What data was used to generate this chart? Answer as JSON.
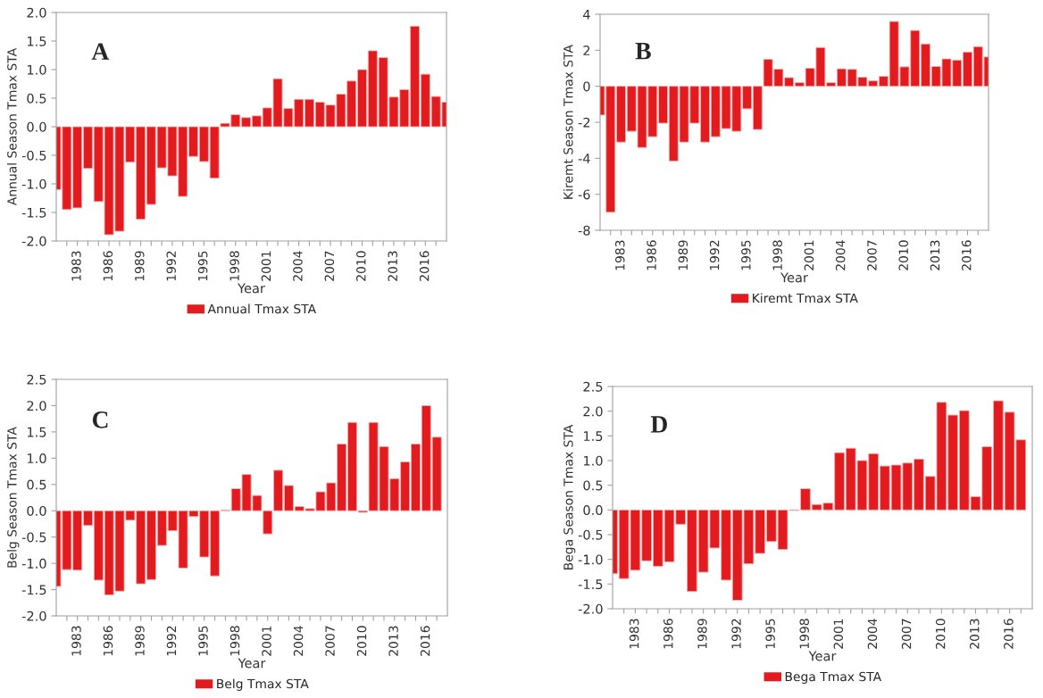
{
  "chart_data": [
    {
      "type": "bar",
      "annotations": [
        "A"
      ],
      "xlabel": "Year",
      "ylabel": "Annual Season Tmax STA",
      "legend": "bottom",
      "grid": false,
      "x": [
        1981,
        1982,
        1983,
        1984,
        1985,
        1986,
        1987,
        1988,
        1989,
        1990,
        1991,
        1992,
        1993,
        1994,
        1995,
        1996,
        1997,
        1998,
        1999,
        2000,
        2001,
        2002,
        2003,
        2004,
        2005,
        2006,
        2007,
        2008,
        2009,
        2010,
        2011,
        2012,
        2013,
        2014,
        2015,
        2016,
        2017,
        2018
      ],
      "xlim": [
        1981,
        2018
      ],
      "xticks": [
        {
          "value": 1982,
          "label": null
        },
        1983,
        {
          "value": 1984,
          "label": null
        },
        {
          "value": 1985,
          "label": null
        },
        1986,
        {
          "value": 1987,
          "label": null
        },
        {
          "value": 1988,
          "label": null
        },
        1989,
        {
          "value": 1990,
          "label": null
        },
        {
          "value": 1991,
          "label": null
        },
        1992,
        {
          "value": 1993,
          "label": null
        },
        {
          "value": 1994,
          "label": null
        },
        1995,
        {
          "value": 1996,
          "label": null
        },
        {
          "value": 1997,
          "label": null
        },
        1998,
        {
          "value": 1999,
          "label": null
        },
        {
          "value": 2000,
          "label": null
        },
        2001,
        {
          "value": 2002,
          "label": null
        },
        {
          "value": 2003,
          "label": null
        },
        2004,
        {
          "value": 2005,
          "label": null
        },
        {
          "value": 2006,
          "label": null
        },
        2007,
        {
          "value": 2008,
          "label": null
        },
        {
          "value": 2009,
          "label": null
        },
        2010,
        {
          "value": 2011,
          "label": null
        },
        {
          "value": 2012,
          "label": null
        },
        2013,
        {
          "value": 2014,
          "label": null
        },
        {
          "value": 2015,
          "label": null
        },
        2016,
        {
          "value": 2017,
          "label": null
        }
      ],
      "ylim": [
        -2.0,
        2.0
      ],
      "yticks": [
        {
          "value": -2.0,
          "label": "-2.0"
        },
        {
          "value": -1.5,
          "label": "-1.5"
        },
        {
          "value": -1.0,
          "label": "-1.0"
        },
        {
          "value": -0.5,
          "label": "-0.5"
        },
        {
          "value": 0.0,
          "label": "0.0"
        },
        {
          "value": 0.5,
          "label": "0.5"
        },
        {
          "value": 1.0,
          "label": "1.0"
        },
        {
          "value": 1.5,
          "label": "1.5"
        },
        {
          "value": 2.0,
          "label": "2.0"
        }
      ],
      "series": [
        {
          "name": "Annual Tmax STA",
          "color": "#e31b1f",
          "values": [
            -1.1,
            -1.45,
            -1.42,
            -0.73,
            -1.31,
            -1.89,
            -1.83,
            -0.62,
            -1.62,
            -1.36,
            -0.72,
            -0.86,
            -1.22,
            -0.52,
            -0.61,
            -0.9,
            0.06,
            0.21,
            0.16,
            0.19,
            0.33,
            0.84,
            0.32,
            0.48,
            0.48,
            0.43,
            0.38,
            0.57,
            0.8,
            1.0,
            1.33,
            1.21,
            0.52,
            0.65,
            1.76,
            0.92,
            0.53,
            0.43
          ]
        }
      ]
    },
    {
      "type": "bar",
      "annotations": [
        "B"
      ],
      "xlabel": "Year",
      "ylabel": "Kiremt Season Tmax STA",
      "legend": "bottom",
      "grid": false,
      "x": [
        1981,
        1982,
        1983,
        1984,
        1985,
        1986,
        1987,
        1988,
        1989,
        1990,
        1991,
        1992,
        1993,
        1994,
        1995,
        1996,
        1997,
        1998,
        1999,
        2000,
        2001,
        2002,
        2003,
        2004,
        2005,
        2006,
        2007,
        2008,
        2009,
        2010,
        2011,
        2012,
        2013,
        2014,
        2015,
        2016,
        2017,
        2018
      ],
      "xlim": [
        1981,
        2018
      ],
      "xticks": [
        {
          "value": 1982,
          "label": null
        },
        1983,
        {
          "value": 1984,
          "label": null
        },
        {
          "value": 1985,
          "label": null
        },
        1986,
        {
          "value": 1987,
          "label": null
        },
        {
          "value": 1988,
          "label": null
        },
        1989,
        {
          "value": 1990,
          "label": null
        },
        {
          "value": 1991,
          "label": null
        },
        1992,
        {
          "value": 1993,
          "label": null
        },
        {
          "value": 1994,
          "label": null
        },
        1995,
        {
          "value": 1996,
          "label": null
        },
        {
          "value": 1997,
          "label": null
        },
        1998,
        {
          "value": 1999,
          "label": null
        },
        {
          "value": 2000,
          "label": null
        },
        2001,
        {
          "value": 2002,
          "label": null
        },
        {
          "value": 2003,
          "label": null
        },
        2004,
        {
          "value": 2005,
          "label": null
        },
        {
          "value": 2006,
          "label": null
        },
        2007,
        {
          "value": 2008,
          "label": null
        },
        {
          "value": 2009,
          "label": null
        },
        2010,
        {
          "value": 2011,
          "label": null
        },
        {
          "value": 2012,
          "label": null
        },
        2013,
        {
          "value": 2014,
          "label": null
        },
        {
          "value": 2015,
          "label": null
        },
        2016,
        {
          "value": 2017,
          "label": null
        }
      ],
      "ylim": [
        -8,
        4
      ],
      "yticks": [
        -8,
        -6,
        -4,
        -2,
        0,
        2,
        4
      ],
      "series": [
        {
          "name": "Kiremt Tmax STA",
          "color": "#e31b1f",
          "values": [
            -1.6,
            -7.0,
            -3.1,
            -2.5,
            -3.4,
            -2.8,
            -2.05,
            -4.15,
            -3.1,
            -2.05,
            -3.1,
            -2.8,
            -2.35,
            -2.5,
            -1.25,
            -2.4,
            1.5,
            0.95,
            0.48,
            0.2,
            1.0,
            2.15,
            0.2,
            0.97,
            0.94,
            0.5,
            0.3,
            0.55,
            3.6,
            1.08,
            3.1,
            2.35,
            1.1,
            1.52,
            1.45,
            1.9,
            2.2,
            1.63
          ]
        }
      ]
    },
    {
      "type": "bar",
      "annotations": [
        "C"
      ],
      "xlabel": "Year",
      "ylabel": "Belg Season Tmax STA",
      "legend": "bottom",
      "grid": false,
      "x": [
        1981,
        1982,
        1983,
        1984,
        1985,
        1986,
        1987,
        1988,
        1989,
        1990,
        1991,
        1992,
        1993,
        1994,
        1995,
        1996,
        1997,
        1998,
        1999,
        2000,
        2001,
        2002,
        2003,
        2004,
        2005,
        2006,
        2007,
        2008,
        2009,
        2010,
        2011,
        2012,
        2013,
        2014,
        2015,
        2016,
        2017
      ],
      "xlim": [
        1981,
        2018
      ],
      "xticks": [
        {
          "value": 1982,
          "label": null
        },
        1983,
        {
          "value": 1984,
          "label": null
        },
        {
          "value": 1985,
          "label": null
        },
        1986,
        {
          "value": 1987,
          "label": null
        },
        {
          "value": 1988,
          "label": null
        },
        1989,
        {
          "value": 1990,
          "label": null
        },
        {
          "value": 1991,
          "label": null
        },
        1992,
        {
          "value": 1993,
          "label": null
        },
        {
          "value": 1994,
          "label": null
        },
        1995,
        {
          "value": 1996,
          "label": null
        },
        {
          "value": 1997,
          "label": null
        },
        1998,
        {
          "value": 1999,
          "label": null
        },
        {
          "value": 2000,
          "label": null
        },
        2001,
        {
          "value": 2002,
          "label": null
        },
        {
          "value": 2003,
          "label": null
        },
        2004,
        {
          "value": 2005,
          "label": null
        },
        {
          "value": 2006,
          "label": null
        },
        2007,
        {
          "value": 2008,
          "label": null
        },
        {
          "value": 2009,
          "label": null
        },
        2010,
        {
          "value": 2011,
          "label": null
        },
        {
          "value": 2012,
          "label": null
        },
        2013,
        {
          "value": 2014,
          "label": null
        },
        {
          "value": 2015,
          "label": null
        },
        2016,
        {
          "value": 2017,
          "label": null
        }
      ],
      "ylim": [
        -2.0,
        2.5
      ],
      "yticks": [
        {
          "value": -2.0,
          "label": "-2.0"
        },
        {
          "value": -1.5,
          "label": "-1.5"
        },
        {
          "value": -1.0,
          "label": "-1.0"
        },
        {
          "value": -0.5,
          "label": "-0.5"
        },
        {
          "value": 0.0,
          "label": "0.0"
        },
        {
          "value": 0.5,
          "label": "0.5"
        },
        {
          "value": 1.0,
          "label": "1.0"
        },
        {
          "value": 1.5,
          "label": "1.5"
        },
        {
          "value": 2.0,
          "label": "2.0"
        },
        {
          "value": 2.5,
          "label": "2.5"
        }
      ],
      "series": [
        {
          "name": "Belg Tmax STA",
          "color": "#e31b1f",
          "values": [
            -1.44,
            -1.12,
            -1.13,
            -0.28,
            -1.32,
            -1.6,
            -1.53,
            -0.18,
            -1.39,
            -1.31,
            -0.66,
            -0.38,
            -1.09,
            -0.11,
            -0.88,
            -1.24,
            0.01,
            0.42,
            0.69,
            0.29,
            -0.44,
            0.77,
            0.48,
            0.08,
            0.04,
            0.36,
            0.53,
            1.27,
            1.68,
            -0.03,
            1.68,
            1.22,
            0.61,
            0.93,
            1.27,
            2.0,
            1.4
          ]
        }
      ]
    },
    {
      "type": "bar",
      "annotations": [
        "D"
      ],
      "xlabel": "Year",
      "ylabel": "Bega Season Tmax STA",
      "legend": "bottom",
      "grid": false,
      "xlim": [
        1981,
        2018
      ],
      "xticks": [
        {
          "value": 1982,
          "label": null
        },
        1983,
        {
          "value": 1984,
          "label": null
        },
        {
          "value": 1985,
          "label": null
        },
        1986,
        {
          "value": 1987,
          "label": null
        },
        {
          "value": 1988,
          "label": null
        },
        1989,
        {
          "value": 1990,
          "label": null
        },
        {
          "value": 1991,
          "label": null
        },
        1992,
        {
          "value": 1993,
          "label": null
        },
        {
          "value": 1994,
          "label": null
        },
        1995,
        {
          "value": 1996,
          "label": null
        },
        {
          "value": 1997,
          "label": null
        },
        1998,
        {
          "value": 1999,
          "label": null
        },
        {
          "value": 2000,
          "label": null
        },
        2001,
        {
          "value": 2002,
          "label": null
        },
        {
          "value": 2003,
          "label": null
        },
        2004,
        {
          "value": 2005,
          "label": null
        },
        {
          "value": 2006,
          "label": null
        },
        2007,
        {
          "value": 2008,
          "label": null
        },
        {
          "value": 2009,
          "label": null
        },
        2010,
        {
          "value": 2011,
          "label": null
        },
        {
          "value": 2012,
          "label": null
        },
        2013,
        {
          "value": 2014,
          "label": null
        },
        {
          "value": 2015,
          "label": null
        },
        2016,
        {
          "value": 2017,
          "label": null
        }
      ],
      "ylim": [
        -2.0,
        2.5
      ],
      "yticks": [
        {
          "value": -2.0,
          "label": "-2.0"
        },
        {
          "value": -1.5,
          "label": "-1.5"
        },
        {
          "value": -1.0,
          "label": "-1.0"
        },
        {
          "value": -0.5,
          "label": "-0.5"
        },
        {
          "value": 0.0,
          "label": "0.0"
        },
        {
          "value": 0.5,
          "label": "0.5"
        },
        {
          "value": 1.0,
          "label": "1.0"
        },
        {
          "value": 1.5,
          "label": "1.5"
        },
        {
          "value": 2.0,
          "label": "2.0"
        },
        {
          "value": 2.5,
          "label": "2.5"
        }
      ],
      "series": [
        {
          "name": "Bega Tmax STA",
          "color": "#e31b1f",
          "x": [
            1981,
            1982,
            1983,
            1984,
            1985,
            1986,
            1987,
            1988,
            1989,
            1990,
            1991,
            1992,
            1993,
            1994,
            1995,
            1996,
            1997,
            1998,
            1999,
            2000,
            2001,
            2002,
            2003,
            2004,
            2005,
            2006,
            2007,
            2008,
            2009,
            2010,
            2011,
            2012,
            2013,
            2014,
            2015,
            2016,
            2017
          ],
          "values": [
            -1.29,
            -1.39,
            -1.22,
            -1.03,
            -1.14,
            -1.05,
            -0.29,
            -1.65,
            -1.26,
            -0.77,
            -1.42,
            -1.83,
            -1.09,
            -0.88,
            -0.64,
            -0.8,
            -0.01,
            0.43,
            0.11,
            0.14,
            1.16,
            1.25,
            1.0,
            1.14,
            0.89,
            0.91,
            0.95,
            1.03,
            0.68,
            2.18,
            1.92,
            2.01,
            0.27,
            1.28,
            2.21,
            1.98,
            1.42
          ]
        }
      ]
    }
  ]
}
